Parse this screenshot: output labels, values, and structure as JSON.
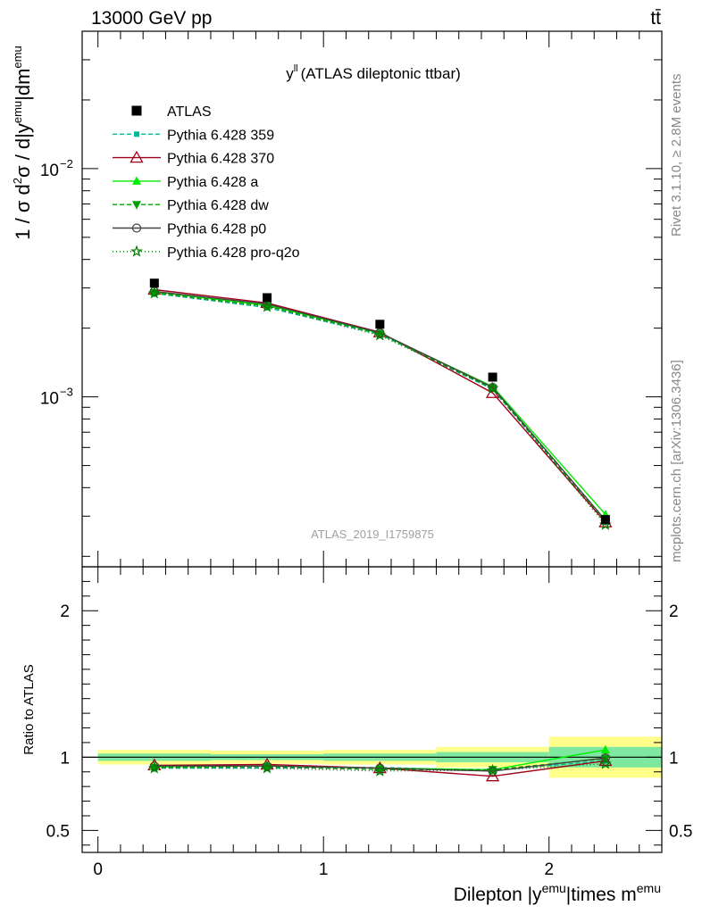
{
  "header": {
    "left_label": "13000 GeV pp",
    "right_label": "tt̄",
    "side_label_top": "Rivet 3.1.10, ≥ 2.8M events",
    "side_label_bottom": "mcplots.cern.ch [arXiv:1306.3436]",
    "watermark": "ATLAS_2019_I1759875"
  },
  "chart_data": [
    {
      "type": "scatter",
      "title_main": "y",
      "title_sup": "ll",
      "title_rest": "(ATLAS dileptonic ttbar)",
      "ylabel": "1 / σ d²σ / d|y^emu|dm^emu",
      "yscale": "log",
      "ylim": [
        0.00018,
        0.04
      ],
      "xlim": [
        -0.07,
        2.5
      ],
      "y_ticks": [
        {
          "value": 0.01,
          "base": "10",
          "exp": "−2"
        },
        {
          "value": 0.001,
          "base": "10",
          "exp": "−3"
        }
      ],
      "legend_position": "top-left",
      "x": [
        0.25,
        0.75,
        1.25,
        1.75,
        2.25
      ],
      "data": {
        "name": "ATLAS",
        "color": "#000000",
        "values": [
          0.00315,
          0.00272,
          0.00208,
          0.00122,
          0.00029
        ]
      },
      "series": [
        {
          "name": "Pythia 6.428 359",
          "color": "#00b89c",
          "marker": "square-small",
          "dash": "5,3",
          "values": [
            0.00284,
            0.00246,
            0.00188,
            0.00108,
            0.000282
          ]
        },
        {
          "name": "Pythia 6.428 370",
          "color": "#a00018",
          "marker": "triangle-open",
          "dash": "",
          "values": [
            0.00295,
            0.00258,
            0.00192,
            0.00104,
            0.000282
          ]
        },
        {
          "name": "Pythia 6.428 a",
          "color": "#00ee00",
          "marker": "triangle",
          "dash": "",
          "values": [
            0.00288,
            0.00252,
            0.0019,
            0.00111,
            0.000305
          ]
        },
        {
          "name": "Pythia 6.428 dw",
          "color": "#00a000",
          "marker": "triangle-down",
          "dash": "5,3",
          "values": [
            0.00286,
            0.0025,
            0.00189,
            0.00109,
            0.000285
          ]
        },
        {
          "name": "Pythia 6.428 p0",
          "color": "#444444",
          "marker": "circle-open",
          "dash": "",
          "values": [
            0.0029,
            0.00255,
            0.00191,
            0.0011,
            0.000288
          ]
        },
        {
          "name": "Pythia 6.428 pro-q2o",
          "color": "#007a00",
          "marker": "star",
          "dash": "1,3",
          "values": [
            0.00284,
            0.00248,
            0.00186,
            0.00109,
            0.000275
          ]
        }
      ]
    },
    {
      "type": "line",
      "ylabel": "Ratio to ATLAS",
      "xlabel_main": "Dilepton |y",
      "xlabel_sup1": "emu",
      "xlabel_mid": "|times m",
      "xlabel_sup2": "emu",
      "ylim": [
        0.35,
        2.3
      ],
      "xlim": [
        -0.07,
        2.5
      ],
      "y_ticks": [
        0.5,
        1,
        2
      ],
      "x_ticks": [
        0,
        1,
        2
      ],
      "x": [
        0.25,
        0.75,
        1.25,
        1.75,
        2.25
      ],
      "bins": [
        [
          0,
          0.5
        ],
        [
          0.5,
          1
        ],
        [
          1,
          1.5
        ],
        [
          1.5,
          2
        ],
        [
          2,
          2.5
        ]
      ],
      "band_inner": [
        0.025,
        0.02,
        0.025,
        0.035,
        0.07
      ],
      "band_outer": [
        0.05,
        0.045,
        0.05,
        0.07,
        0.14
      ],
      "band_inner_color": "#7fe8a0",
      "band_outer_color": "#ffff8a",
      "series": [
        {
          "name": "Pythia 6.428 359",
          "values": [
            0.925,
            0.925,
            0.93,
            0.91,
            0.975
          ]
        },
        {
          "name": "Pythia 6.428 370",
          "values": [
            0.945,
            0.95,
            0.925,
            0.87,
            0.975
          ]
        },
        {
          "name": "Pythia 6.428 a",
          "values": [
            0.935,
            0.94,
            0.925,
            0.915,
            1.05
          ]
        },
        {
          "name": "Pythia 6.428 dw",
          "values": [
            0.93,
            0.935,
            0.915,
            0.915,
            0.99
          ]
        },
        {
          "name": "Pythia 6.428 p0",
          "values": [
            0.94,
            0.94,
            0.925,
            0.905,
            0.995
          ]
        },
        {
          "name": "Pythia 6.428 pro-q2o",
          "values": [
            0.925,
            0.925,
            0.905,
            0.91,
            0.955
          ]
        }
      ]
    }
  ]
}
